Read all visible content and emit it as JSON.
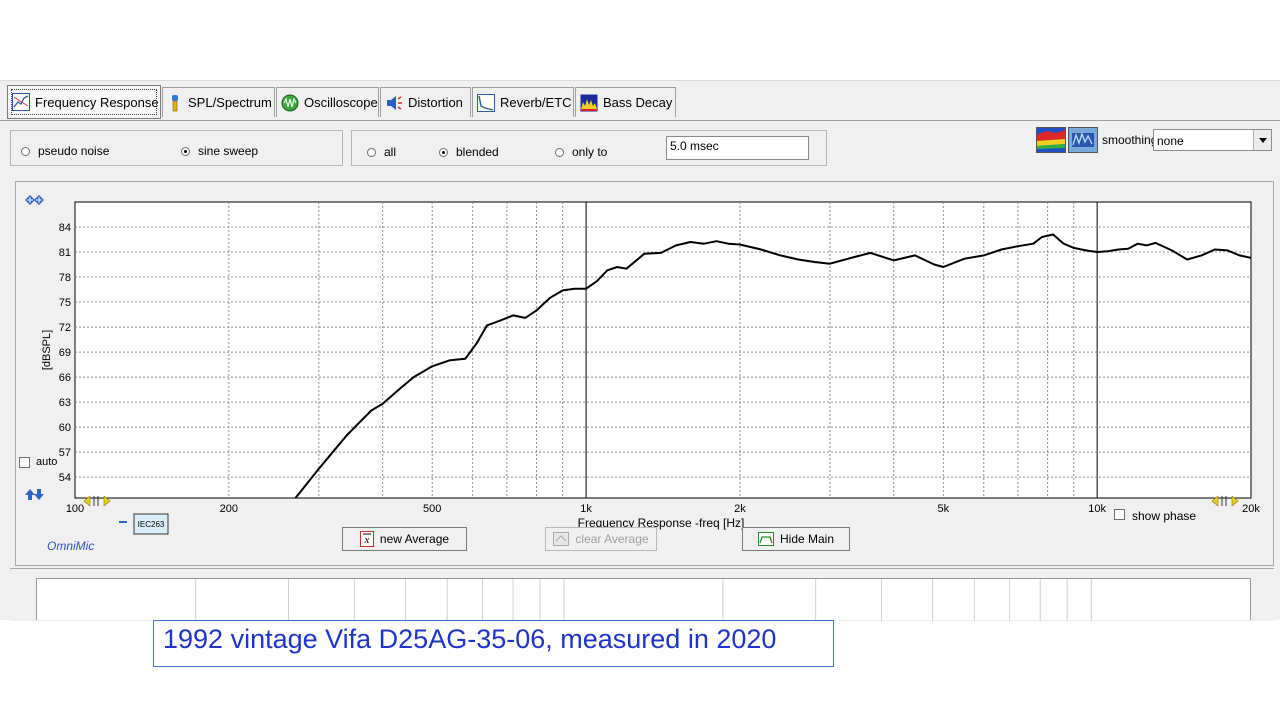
{
  "tabs": [
    {
      "label": "Frequency Response",
      "icon": "frequency-response-icon",
      "active": true
    },
    {
      "label": "SPL/Spectrum",
      "icon": "spl-meter-icon",
      "active": false
    },
    {
      "label": "Oscilloscope",
      "icon": "oscilloscope-icon",
      "active": false
    },
    {
      "label": "Distortion",
      "icon": "distortion-speaker-icon",
      "active": false
    },
    {
      "label": "Reverb/ETC",
      "icon": "reverb-icon",
      "active": false
    },
    {
      "label": "Bass Decay",
      "icon": "bass-decay-icon",
      "active": false
    }
  ],
  "signal": {
    "pseudo_noise": "pseudo noise",
    "sine_sweep": "sine sweep",
    "selected": "sine sweep"
  },
  "gating": {
    "all": "all",
    "blended": "blended",
    "only_to": "only to",
    "selected": "blended",
    "time_value": "5.0 msec"
  },
  "smoothing": {
    "label": "smoothing",
    "value": "none"
  },
  "graph": {
    "auto_label": "auto",
    "show_phase_label": "show phase",
    "brand": "OmniMic",
    "legend_tag": "IEC263",
    "buttons": {
      "new_average": "new Average",
      "clear_average": "clear Average",
      "hide_main": "Hide Main"
    }
  },
  "caption": "1992 vintage Vifa D25AG-35-06, measured in 2020",
  "chart_data": {
    "type": "line",
    "xlabel": "Frequency Response -freq [Hz]",
    "ylabel": "[dBSPL]",
    "xscale": "log",
    "xlim": [
      100,
      20000
    ],
    "ylim": [
      51.5,
      87
    ],
    "x_ticks": [
      100,
      200,
      500,
      1000,
      2000,
      5000,
      10000,
      20000
    ],
    "x_tick_labels": [
      "100",
      "200",
      "500",
      "1k",
      "2k",
      "5k",
      "10k",
      "20k"
    ],
    "y_ticks": [
      54,
      57,
      60,
      63,
      66,
      69,
      72,
      75,
      78,
      81,
      84
    ],
    "grid": true,
    "series": [
      {
        "color": "#000000",
        "x": [
          270,
          300,
          340,
          380,
          400,
          430,
          460,
          500,
          540,
          580,
          610,
          640,
          680,
          720,
          760,
          800,
          850,
          900,
          950,
          1000,
          1050,
          1100,
          1150,
          1200,
          1300,
          1400,
          1500,
          1600,
          1700,
          1800,
          1900,
          2000,
          2200,
          2400,
          2600,
          2800,
          3000,
          3300,
          3600,
          4000,
          4400,
          4800,
          5000,
          5500,
          6000,
          6500,
          7000,
          7500,
          7800,
          8200,
          8600,
          9000,
          9500,
          10000,
          10500,
          11000,
          11500,
          12000,
          12500,
          13000,
          14000,
          15000,
          16000,
          17000,
          18000,
          19000,
          20000
        ],
        "y": [
          51.5,
          55.0,
          59.0,
          62.0,
          62.8,
          64.5,
          66.0,
          67.3,
          68.0,
          68.2,
          70.0,
          72.2,
          72.8,
          73.4,
          73.1,
          74.0,
          75.5,
          76.4,
          76.6,
          76.6,
          77.5,
          78.8,
          79.2,
          79.0,
          80.8,
          80.9,
          81.8,
          82.2,
          82.0,
          82.3,
          82.0,
          81.9,
          81.3,
          80.6,
          80.1,
          79.8,
          79.6,
          80.3,
          80.9,
          80.0,
          80.6,
          79.5,
          79.2,
          80.2,
          80.6,
          81.3,
          81.7,
          82.0,
          82.8,
          83.1,
          82.0,
          81.5,
          81.2,
          81.0,
          81.1,
          81.3,
          81.4,
          82.0,
          81.8,
          82.1,
          81.2,
          80.1,
          80.6,
          81.3,
          81.2,
          80.6,
          80.3
        ]
      }
    ]
  }
}
